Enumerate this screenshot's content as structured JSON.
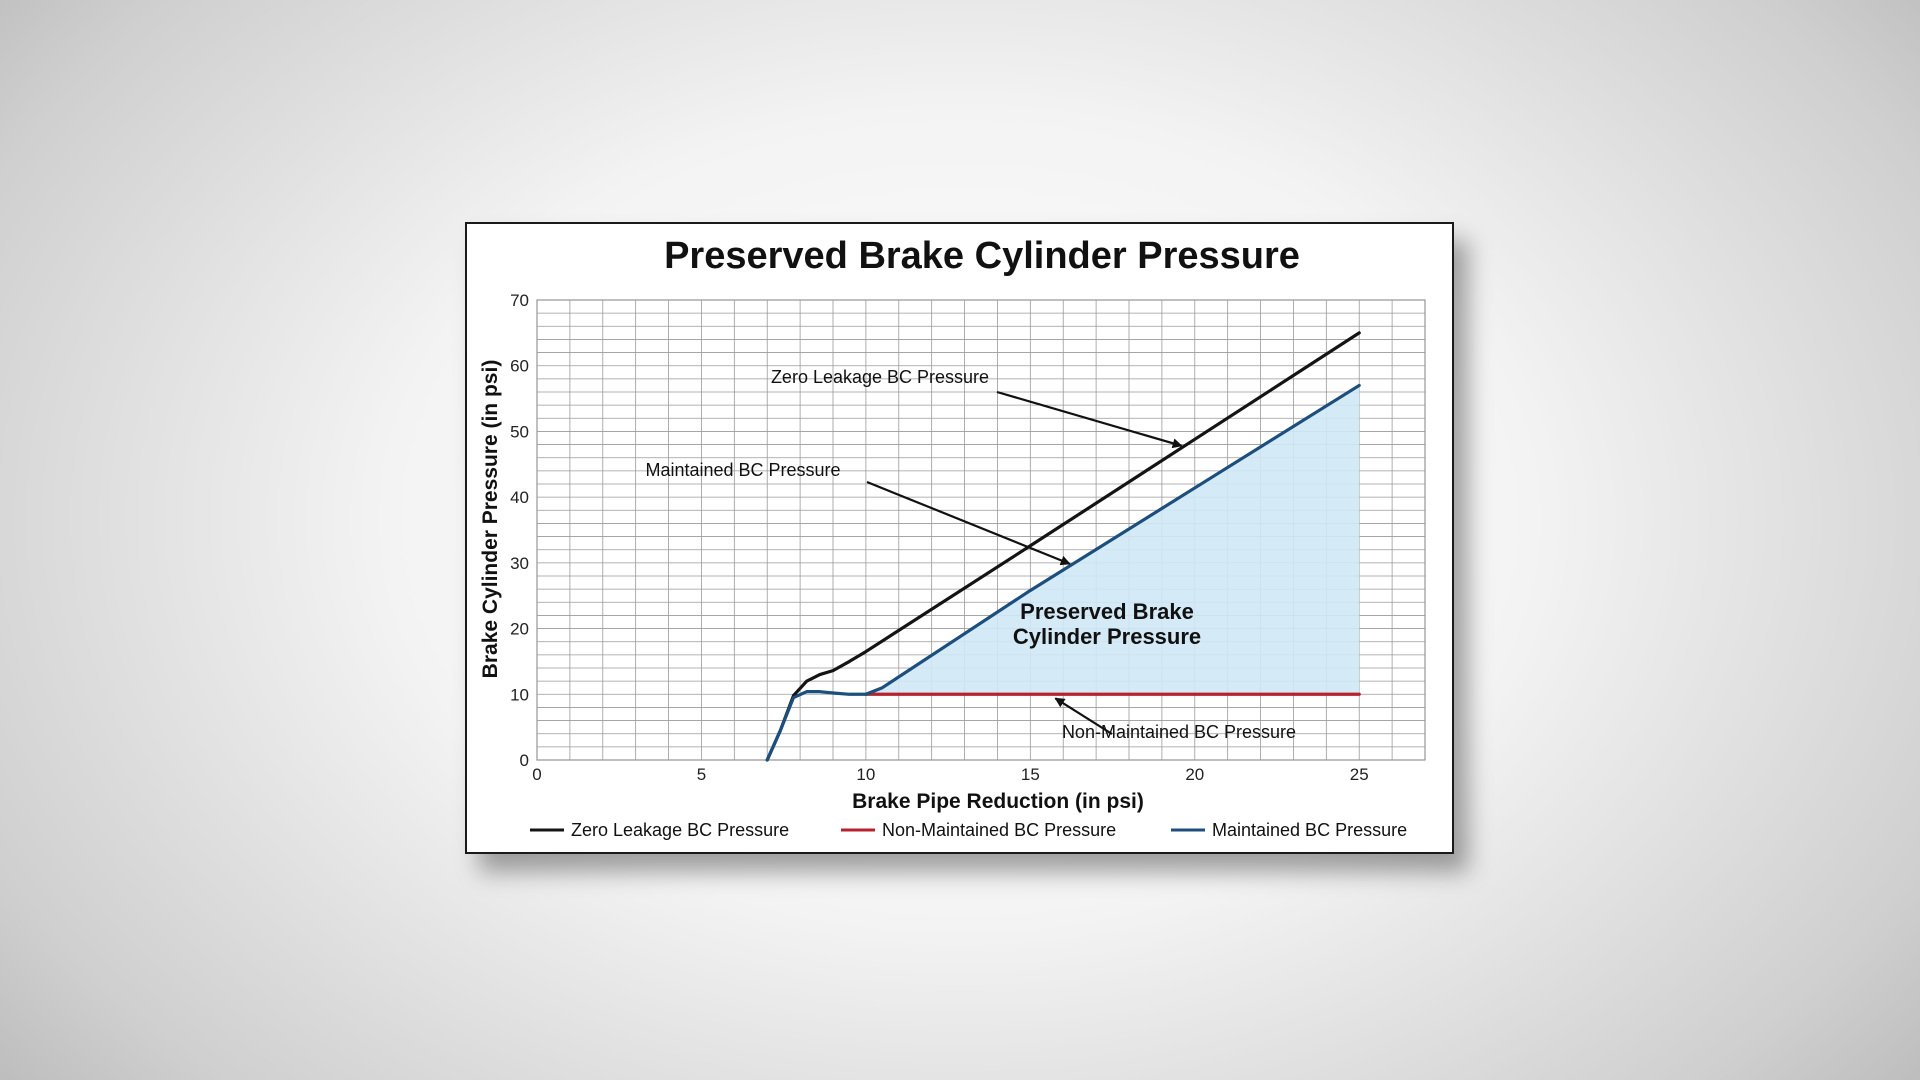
{
  "chart_data": {
    "type": "line",
    "title": "Preserved Brake Cylinder Pressure",
    "xlabel": "Brake Pipe Reduction (in psi)",
    "ylabel": "Brake Cylinder Pressure (in psi)",
    "xlim": [
      0,
      27
    ],
    "ylim": [
      0,
      70
    ],
    "xticks": [
      0,
      5,
      10,
      15,
      20,
      25
    ],
    "yticks": [
      0,
      10,
      20,
      30,
      40,
      50,
      60,
      70
    ],
    "grid": true,
    "legend_position": "bottom",
    "series": [
      {
        "name": "Zero Leakage BC Pressure",
        "color": "#141414",
        "x": [
          7.0,
          7.4,
          7.8,
          8.2,
          8.6,
          9.0,
          9.5,
          10,
          15,
          20,
          25
        ],
        "y": [
          0,
          4.5,
          9.8,
          12,
          13,
          13.6,
          15,
          16.5,
          32.6,
          48.8,
          65
        ]
      },
      {
        "name": "Non-Maintained BC Pressure",
        "color": "#b8222f",
        "x": [
          10,
          25
        ],
        "y": [
          10,
          10
        ]
      },
      {
        "name": "Maintained BC Pressure",
        "color": "#1c4e7e",
        "x": [
          7.0,
          7.4,
          7.8,
          8.2,
          8.6,
          9.0,
          9.5,
          10,
          10.5,
          15,
          20,
          25
        ],
        "y": [
          0,
          4.5,
          9.5,
          10.4,
          10.4,
          10.2,
          10,
          10,
          11,
          25.8,
          41.4,
          57
        ]
      }
    ],
    "shaded_region": {
      "label_line1": "Preserved Brake",
      "label_line2": "Cylinder Pressure",
      "color": "#cfe9f6"
    },
    "annotations": [
      {
        "text": "Zero Leakage BC Pressure"
      },
      {
        "text": "Maintained BC Pressure"
      },
      {
        "text": "Non-Maintained BC Pressure"
      }
    ]
  }
}
